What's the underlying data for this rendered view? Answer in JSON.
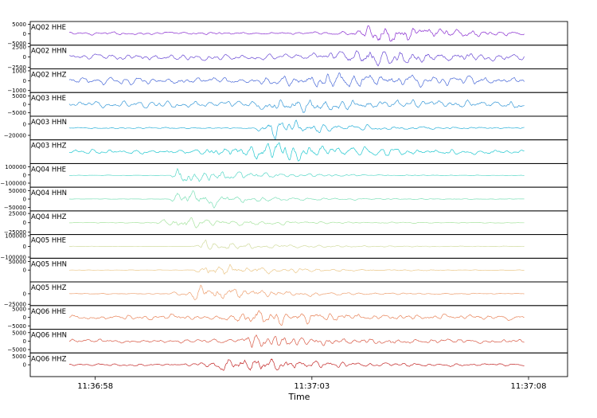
{
  "chart_data": {
    "type": "line",
    "title": "",
    "xlabel": "Time",
    "x_ticks": [
      "11:36:58",
      "11:37:03",
      "11:37:08"
    ],
    "x_tick_values_seconds": [
      58,
      63,
      68
    ],
    "xlim_seconds": [
      56.5,
      68.9
    ],
    "grid": false,
    "legend": "none",
    "panels": [
      {
        "name": "AQ02 HHE",
        "color": "#8a2ed0",
        "ylim": [
          -6000,
          6500
        ],
        "yticks": [
          5000,
          0,
          -5000
        ],
        "ytick_labels": [
          "5000",
          "0",
          "−5000"
        ],
        "onset_s": 63.5,
        "peak_s": 64.6,
        "amp_frac": 0.85,
        "noise_frac": 0.12
      },
      {
        "name": "AQ02 HHN",
        "color": "#6a4ad4",
        "ylim": [
          -2900,
          2900
        ],
        "yticks": [
          2500,
          0,
          -2500
        ],
        "ytick_labels": [
          "2500",
          "0",
          "−2500"
        ],
        "onset_s": 62.6,
        "peak_s": 64.4,
        "amp_frac": 0.85,
        "noise_frac": 0.25
      },
      {
        "name": "AQ02 HHZ",
        "color": "#4a6ad8",
        "ylim": [
          -1200,
          1200
        ],
        "yticks": [
          1000,
          0,
          -1000
        ],
        "ytick_labels": [
          "1000",
          "0",
          "−1000"
        ],
        "onset_s": 61.6,
        "peak_s": 63.5,
        "amp_frac": 0.8,
        "noise_frac": 0.3
      },
      {
        "name": "AQ03 HHE",
        "color": "#3a9ad8",
        "ylim": [
          -7000,
          7000
        ],
        "yticks": [
          5000,
          0,
          -5000
        ],
        "ytick_labels": [
          "5000",
          "0",
          "−5000"
        ],
        "onset_s": 61.0,
        "peak_s": 62.6,
        "amp_frac": 0.8,
        "noise_frac": 0.3
      },
      {
        "name": "AQ03 HHN",
        "color": "#2ab0d8",
        "ylim": [
          -28000,
          14000
        ],
        "yticks": [
          0,
          -20000
        ],
        "ytick_labels": [
          "0",
          "−20000"
        ],
        "onset_s": 61.6,
        "peak_s": 62.0,
        "amp_frac": 0.85,
        "noise_frac": 0.06
      },
      {
        "name": "AQ03 HHZ",
        "color": "#22c8d0",
        "ylim": [
          -12000,
          12000
        ],
        "yticks": [],
        "ytick_labels": [],
        "onset_s": 59.9,
        "peak_s": 62.1,
        "amp_frac": 0.9,
        "noise_frac": 0.18
      },
      {
        "name": "AQ04 HHE",
        "color": "#5ad8c8",
        "ylim": [
          -150000,
          140000
        ],
        "yticks": [
          100000,
          0,
          -100000
        ],
        "ytick_labels": [
          "100000",
          "0",
          "−100000"
        ],
        "onset_s": 59.7,
        "peak_s": 59.9,
        "amp_frac": 0.85,
        "noise_frac": 0.02
      },
      {
        "name": "AQ04 HHN",
        "color": "#7ee0b8",
        "ylim": [
          -70000,
          70000
        ],
        "yticks": [
          50000,
          0,
          -50000
        ],
        "ytick_labels": [
          "50000",
          "0",
          "−50000"
        ],
        "onset_s": 59.7,
        "peak_s": 59.9,
        "amp_frac": 0.85,
        "noise_frac": 0.02
      },
      {
        "name": "AQ04 HHZ",
        "color": "#a8e4a0",
        "ylim": [
          -32000,
          32000
        ],
        "yticks": [
          25000,
          0,
          -25000
        ],
        "ytick_labels": [
          "25000",
          "0",
          "−25000"
        ],
        "onset_s": 59.1,
        "peak_s": 59.9,
        "amp_frac": 0.6,
        "noise_frac": 0.03
      },
      {
        "name": "AQ05 HHE",
        "color": "#d2dca0",
        "ylim": [
          -110000,
          110000
        ],
        "yticks": [
          100000,
          0,
          -100000
        ],
        "ytick_labels": [
          "100000",
          "0",
          "−100000"
        ],
        "onset_s": 60.2,
        "peak_s": 60.5,
        "amp_frac": 0.55,
        "noise_frac": 0.02
      },
      {
        "name": "AQ05 HHN",
        "color": "#ecc88a",
        "ylim": [
          -70000,
          70000
        ],
        "yticks": [
          50000,
          0
        ],
        "ytick_labels": [
          "50000",
          "0"
        ],
        "onset_s": 60.2,
        "peak_s": 60.5,
        "amp_frac": 0.7,
        "noise_frac": 0.02
      },
      {
        "name": "AQ05 HHZ",
        "color": "#eea070",
        "ylim": [
          -28000,
          28000
        ],
        "yticks": [
          0,
          -25000
        ],
        "ytick_labels": [
          "0",
          "−25000"
        ],
        "onset_s": 59.6,
        "peak_s": 60.5,
        "amp_frac": 0.75,
        "noise_frac": 0.03
      },
      {
        "name": "AQ06 HHE",
        "color": "#e8845a",
        "ylim": [
          -7000,
          7000
        ],
        "yticks": [
          5000,
          0,
          -5000
        ],
        "ytick_labels": [
          "5000",
          "0",
          "−5000"
        ],
        "onset_s": 60.6,
        "peak_s": 61.7,
        "amp_frac": 0.75,
        "noise_frac": 0.22
      },
      {
        "name": "AQ06 HHN",
        "color": "#d85a46",
        "ylim": [
          -7000,
          7000
        ],
        "yticks": [
          5000,
          0,
          -5000
        ],
        "ytick_labels": [
          "5000",
          "0",
          "−5000"
        ],
        "onset_s": 61.3,
        "peak_s": 61.6,
        "amp_frac": 0.75,
        "noise_frac": 0.18
      },
      {
        "name": "AQ06 HHZ",
        "color": "#c42a2a",
        "ylim": [
          -7000,
          7000
        ],
        "yticks": [
          5000,
          0
        ],
        "ytick_labels": [
          "5000",
          "0"
        ],
        "onset_s": 59.9,
        "peak_s": 61.6,
        "amp_frac": 0.8,
        "noise_frac": 0.1
      }
    ]
  }
}
